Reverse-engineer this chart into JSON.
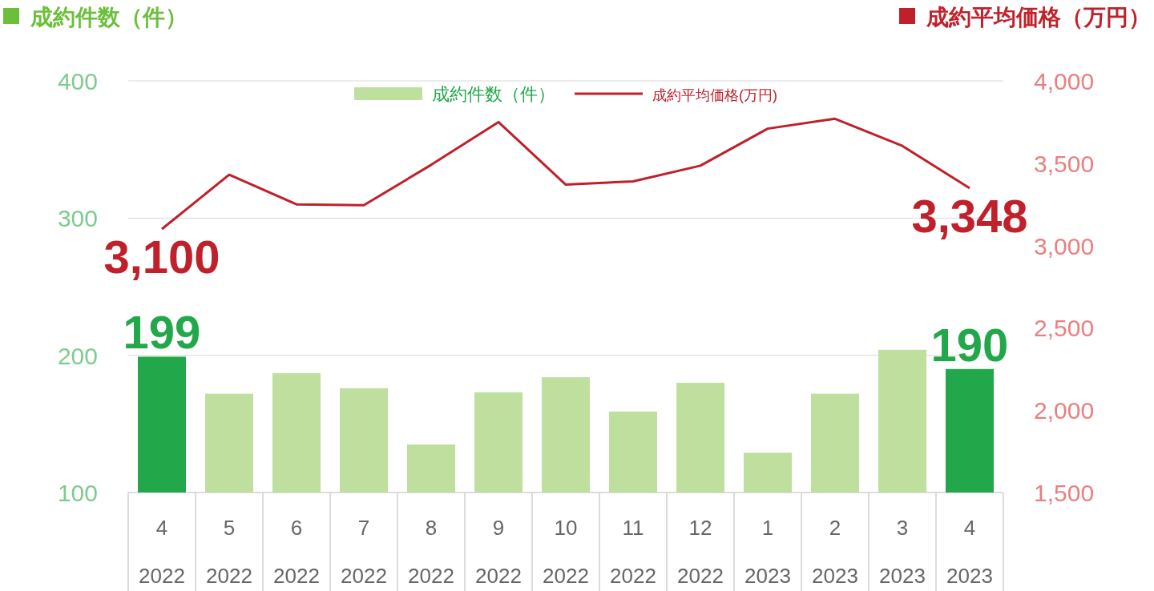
{
  "chart_data": {
    "type": "bar",
    "ylabel": "成約件数（件）",
    "y2label": "成約平均価格（万円）",
    "categories": [
      "4\n2022",
      "5\n2022",
      "6\n2022",
      "7\n2022",
      "8\n2022",
      "9\n2022",
      "10\n2022",
      "11\n2022",
      "12\n2022",
      "1\n2023",
      "2\n2023",
      "3\n2023",
      "4\n2023"
    ],
    "series": [
      {
        "name": "成約件数（件）",
        "color": "#bfdf9e",
        "colors": [
          "#22a84a",
          "#bfdf9e",
          "#bfdf9e",
          "#bfdf9e",
          "#bfdf9e",
          "#bfdf9e",
          "#bfdf9e",
          "#bfdf9e",
          "#bfdf9e",
          "#bfdf9e",
          "#bfdf9e",
          "#bfdf9e",
          "#22a84a"
        ],
        "values": [
          199,
          172,
          187,
          176,
          135,
          173,
          184,
          159,
          180,
          129,
          172,
          204,
          190
        ],
        "value_labels": [
          "199",
          null,
          null,
          null,
          null,
          null,
          null,
          null,
          null,
          null,
          null,
          null,
          "190"
        ]
      },
      {
        "name": "成約平均価格(万円)",
        "type": "line",
        "axis": "y2",
        "color": "#c0202a",
        "values": [
          3100,
          3430,
          3250,
          3245,
          3490,
          3750,
          3370,
          3390,
          3485,
          3710,
          3770,
          3605,
          3348
        ],
        "value_labels": [
          "3,100",
          null,
          null,
          null,
          null,
          null,
          null,
          null,
          null,
          null,
          null,
          null,
          "3,348"
        ]
      }
    ],
    "ylim": [
      100,
      400
    ],
    "yticks": [
      100,
      200,
      300,
      400
    ],
    "y2lim": [
      1500,
      4000
    ],
    "y2ticks": [
      {
        "value": 1500,
        "label": "1,500"
      },
      {
        "value": 2000,
        "label": "2,000"
      },
      {
        "value": 2500,
        "label": "2,500"
      },
      {
        "value": 3000,
        "label": "3,000"
      },
      {
        "value": 3500,
        "label": "3,500"
      },
      {
        "value": 4000,
        "label": "4,000"
      }
    ],
    "grid": "y",
    "legend": "top",
    "marker": "none",
    "line_style": "solid"
  }
}
